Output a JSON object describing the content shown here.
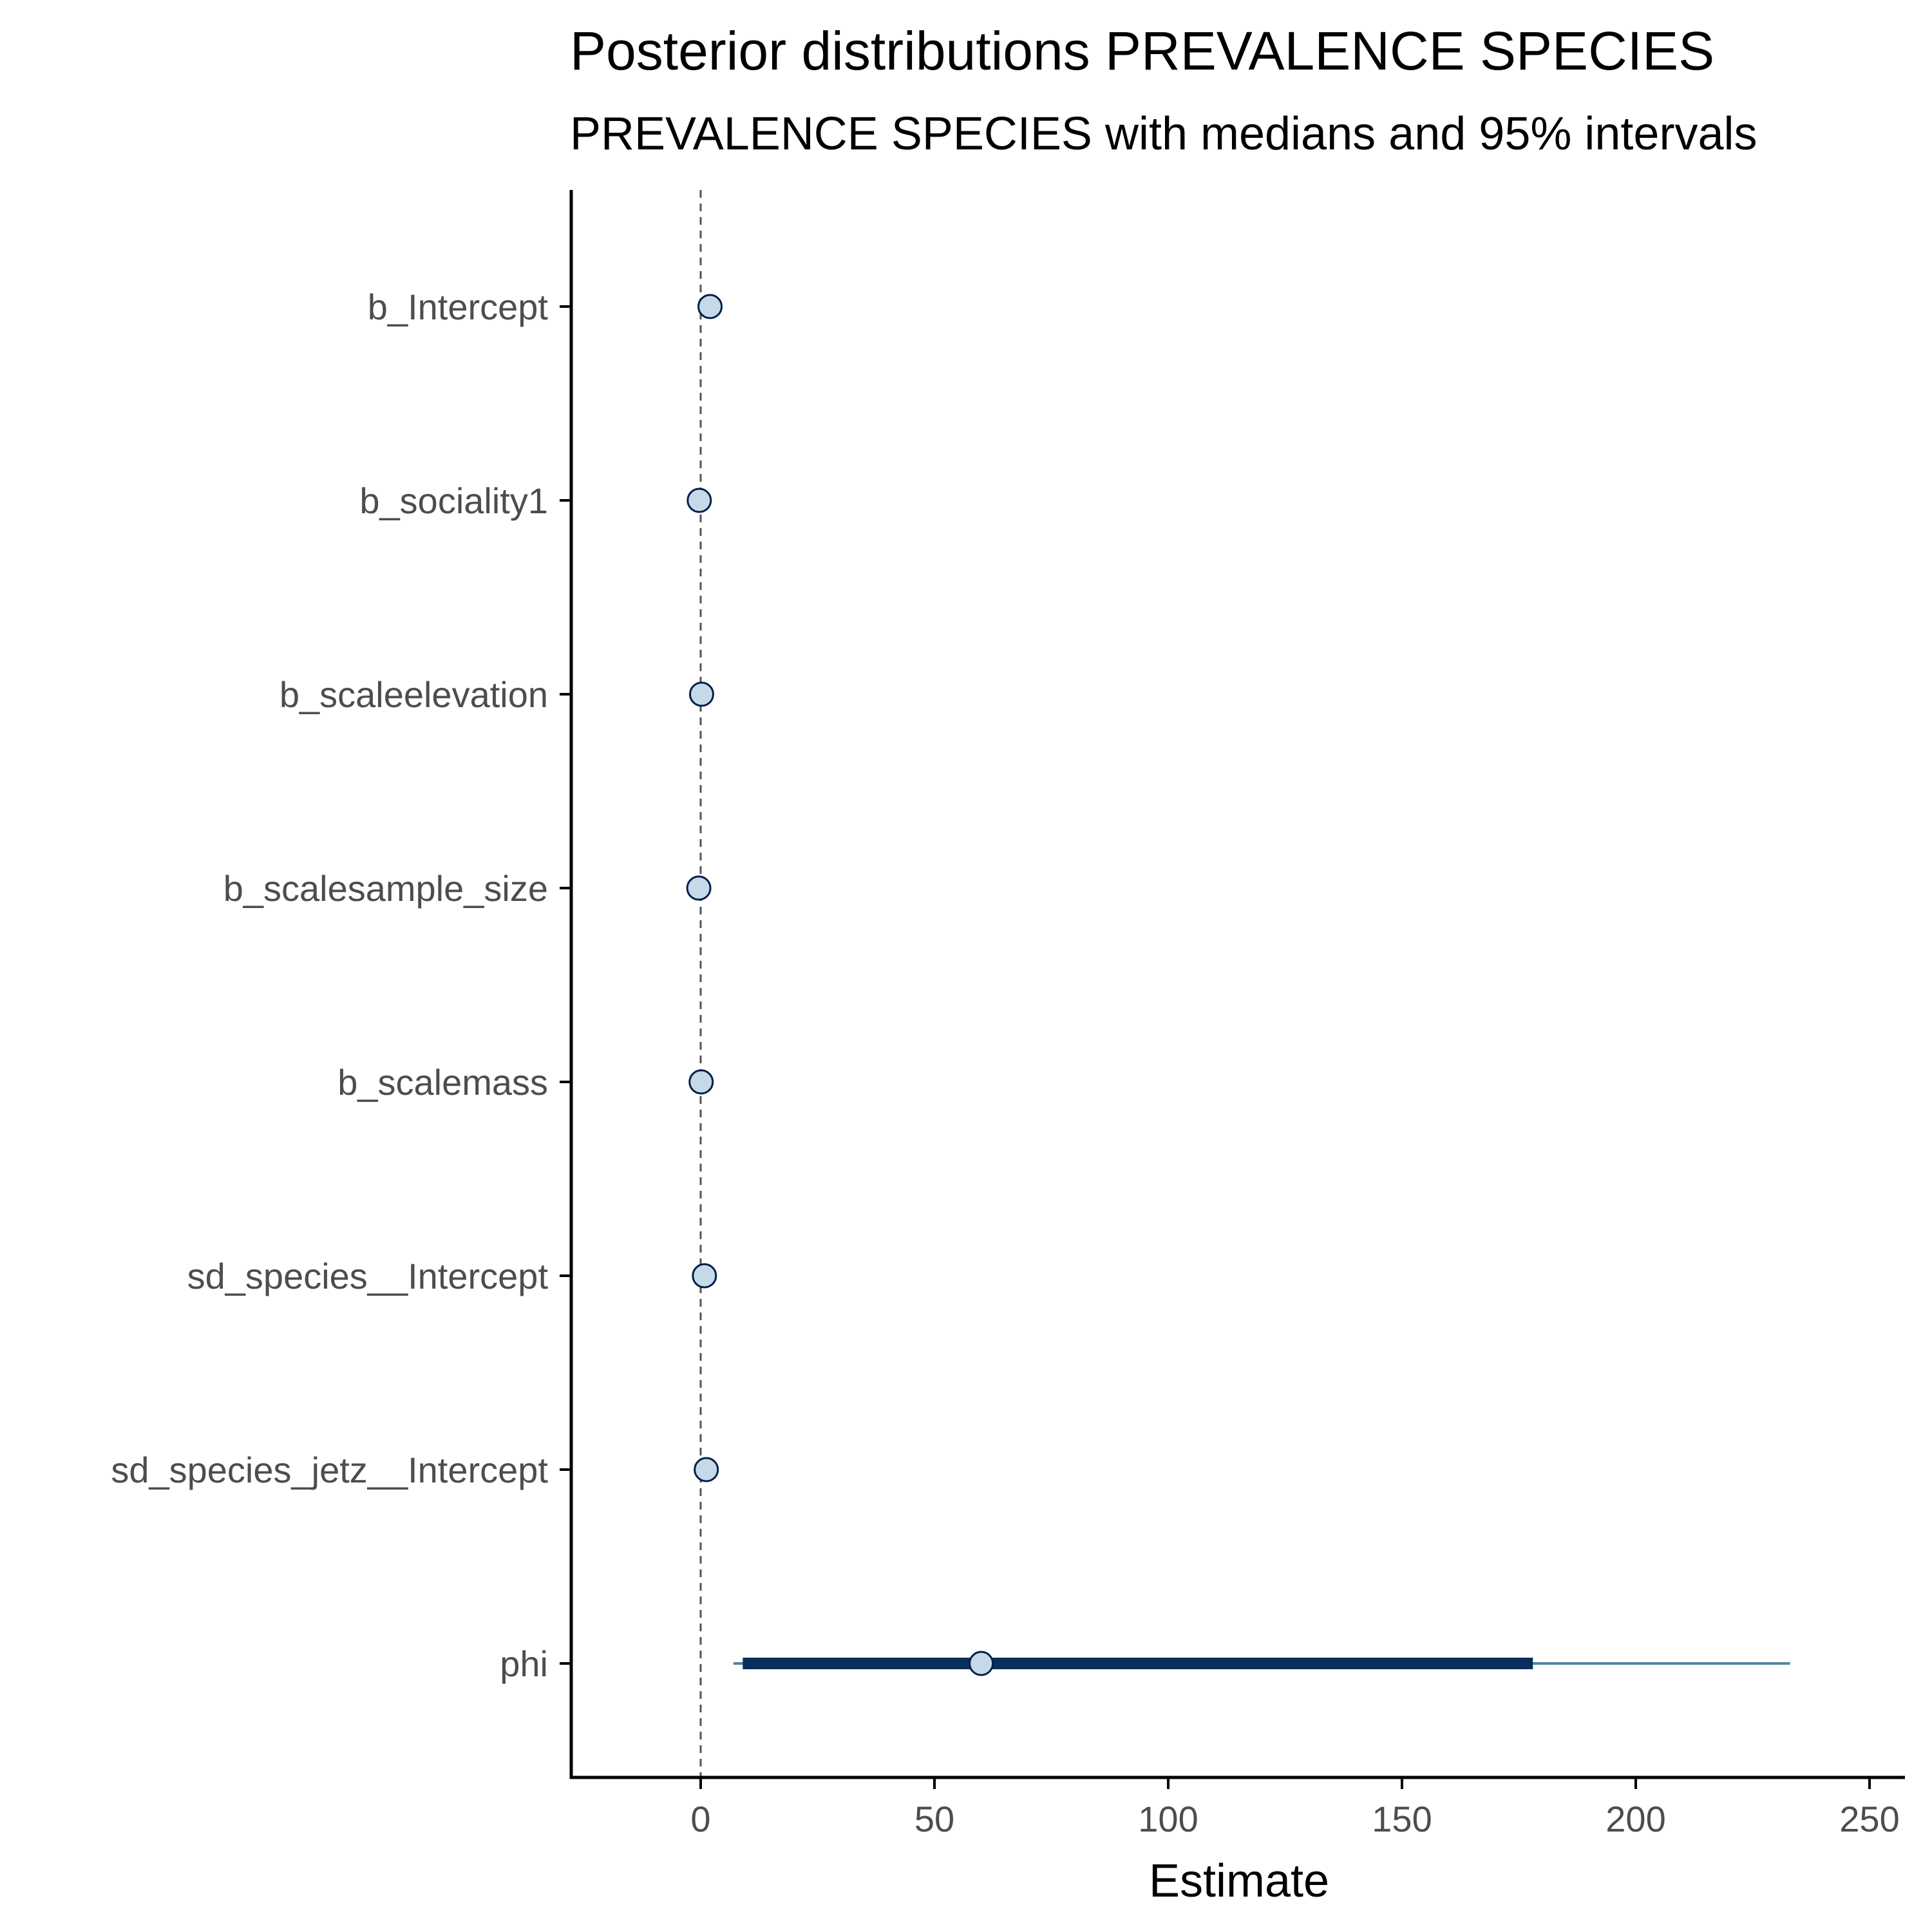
{
  "chart_data": {
    "type": "scatter",
    "title": "Posterior distributions PREVALENCE SPECIES",
    "subtitle": "PREVALENCE SPECIES with medians and 95% intervals",
    "xlabel": "Estimate",
    "ylabel": "",
    "xlim": [
      -28,
      257
    ],
    "xticks": [
      0,
      50,
      100,
      150,
      200,
      250
    ],
    "reference_line": 0,
    "grid": false,
    "legend": "none",
    "parameters": [
      {
        "name": "b_Intercept",
        "median": 2,
        "inner": [
          1.5,
          2.5
        ],
        "outer": [
          1,
          3
        ]
      },
      {
        "name": "b_sociality1",
        "median": -0.3,
        "inner": [
          -0.8,
          0.2
        ],
        "outer": [
          -1.2,
          0.6
        ]
      },
      {
        "name": "b_scaleelevation",
        "median": 0.2,
        "inner": [
          -0.2,
          0.6
        ],
        "outer": [
          -0.5,
          0.9
        ]
      },
      {
        "name": "b_scalesample_size",
        "median": -0.4,
        "inner": [
          -0.8,
          0
        ],
        "outer": [
          -1.1,
          0.3
        ]
      },
      {
        "name": "b_scalemass",
        "median": 0.1,
        "inner": [
          -0.3,
          0.5
        ],
        "outer": [
          -0.6,
          0.8
        ]
      },
      {
        "name": "sd_species__Intercept",
        "median": 0.8,
        "inner": [
          0.4,
          1.3
        ],
        "outer": [
          0.1,
          1.8
        ]
      },
      {
        "name": "sd_species_jetz__Intercept",
        "median": 1.2,
        "inner": [
          0.6,
          1.8
        ],
        "outer": [
          0.2,
          2.5
        ]
      },
      {
        "name": "phi",
        "median": 60,
        "inner": [
          9,
          178
        ],
        "outer": [
          7,
          233
        ]
      }
    ]
  },
  "colors": {
    "point_fill": "#c6d9e8",
    "point_stroke": "#011f4b",
    "inner_interval": "#0b2d5b",
    "outer_interval": "#4f86a6",
    "reference_line": "#555555",
    "axis": "#000000",
    "tick_label": "#4d4d4d"
  }
}
